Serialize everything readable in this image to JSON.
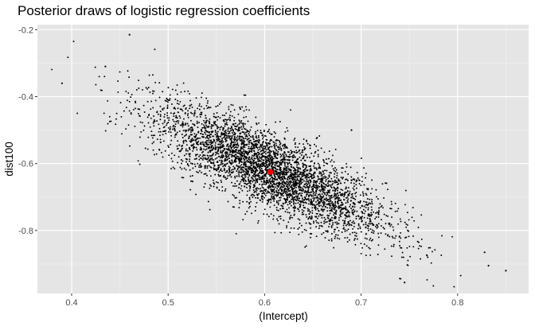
{
  "chart_data": {
    "type": "scatter",
    "title": "Posterior draws of logistic regression coefficients",
    "xlabel": "(Intercept)",
    "ylabel": "dist100",
    "xlim": [
      0.37,
      0.86
    ],
    "ylim": [
      -0.975,
      -0.19
    ],
    "x_ticks": [
      0.4,
      0.5,
      0.6,
      0.7,
      0.8
    ],
    "x_tick_labels": [
      "0.4",
      "0.5",
      "0.6",
      "0.7",
      "0.8"
    ],
    "y_ticks": [
      -0.8,
      -0.6,
      -0.4,
      -0.2
    ],
    "y_tick_labels": [
      "-0.8",
      "-0.6",
      "-0.4",
      "-0.2"
    ],
    "grid": true,
    "background": "#e5e5e5",
    "point_color": "#000000",
    "highlight_color": "#ff0000",
    "points_description_count": 4000,
    "joint_distribution": {
      "mean": [
        0.605,
        -0.62
      ],
      "sd": [
        0.06,
        0.097
      ],
      "correlation": -0.8
    },
    "highlight_point": {
      "x": 0.606,
      "y": -0.625
    },
    "sample_points": [
      {
        "x": 0.39,
        "y": -0.36
      },
      {
        "x": 0.46,
        "y": -0.215
      },
      {
        "x": 0.85,
        "y": -0.92
      },
      {
        "x": 0.828,
        "y": -0.865
      },
      {
        "x": 0.832,
        "y": -0.905
      },
      {
        "x": 0.435,
        "y": -0.31
      },
      {
        "x": 0.745,
        "y": -0.955
      },
      {
        "x": 0.69,
        "y": -0.5
      }
    ]
  }
}
